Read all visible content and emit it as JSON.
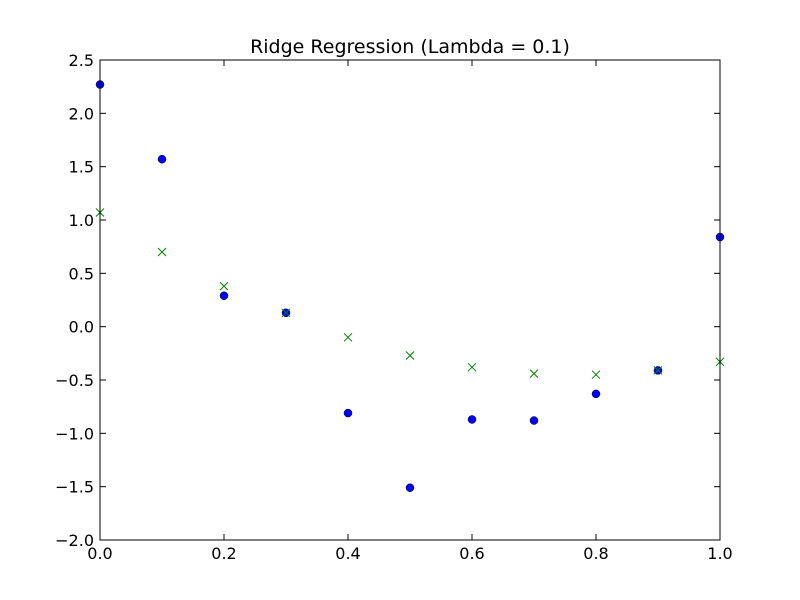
{
  "chart_data": {
    "type": "scatter",
    "title": "Ridge Regression (Lambda = 0.1)",
    "xlabel": "",
    "ylabel": "",
    "xlim": [
      0.0,
      1.0
    ],
    "ylim": [
      -2.0,
      2.5
    ],
    "xticks": [
      "0.0",
      "0.2",
      "0.4",
      "0.6",
      "0.8",
      "1.0"
    ],
    "yticks": [
      "2.5",
      "2.0",
      "1.5",
      "1.0",
      "0.5",
      "0.0",
      "−0.5",
      "−1.0",
      "−1.5",
      "−2.0"
    ],
    "grid": false,
    "legend": "none",
    "series": [
      {
        "marker": "circle",
        "color": "#0000ff",
        "x": [
          0.0,
          0.1,
          0.2,
          0.3,
          0.4,
          0.5,
          0.6,
          0.7,
          0.8,
          0.9,
          1.0
        ],
        "y": [
          2.27,
          1.57,
          0.29,
          0.13,
          -0.81,
          -1.51,
          -0.87,
          -0.88,
          -0.63,
          -0.41,
          0.84
        ]
      },
      {
        "marker": "x",
        "color": "#008000",
        "x": [
          0.0,
          0.1,
          0.2,
          0.3,
          0.4,
          0.5,
          0.6,
          0.7,
          0.8,
          0.9,
          1.0
        ],
        "y": [
          1.07,
          0.7,
          0.38,
          0.13,
          -0.1,
          -0.27,
          -0.38,
          -0.44,
          -0.45,
          -0.41,
          -0.33
        ]
      }
    ]
  }
}
